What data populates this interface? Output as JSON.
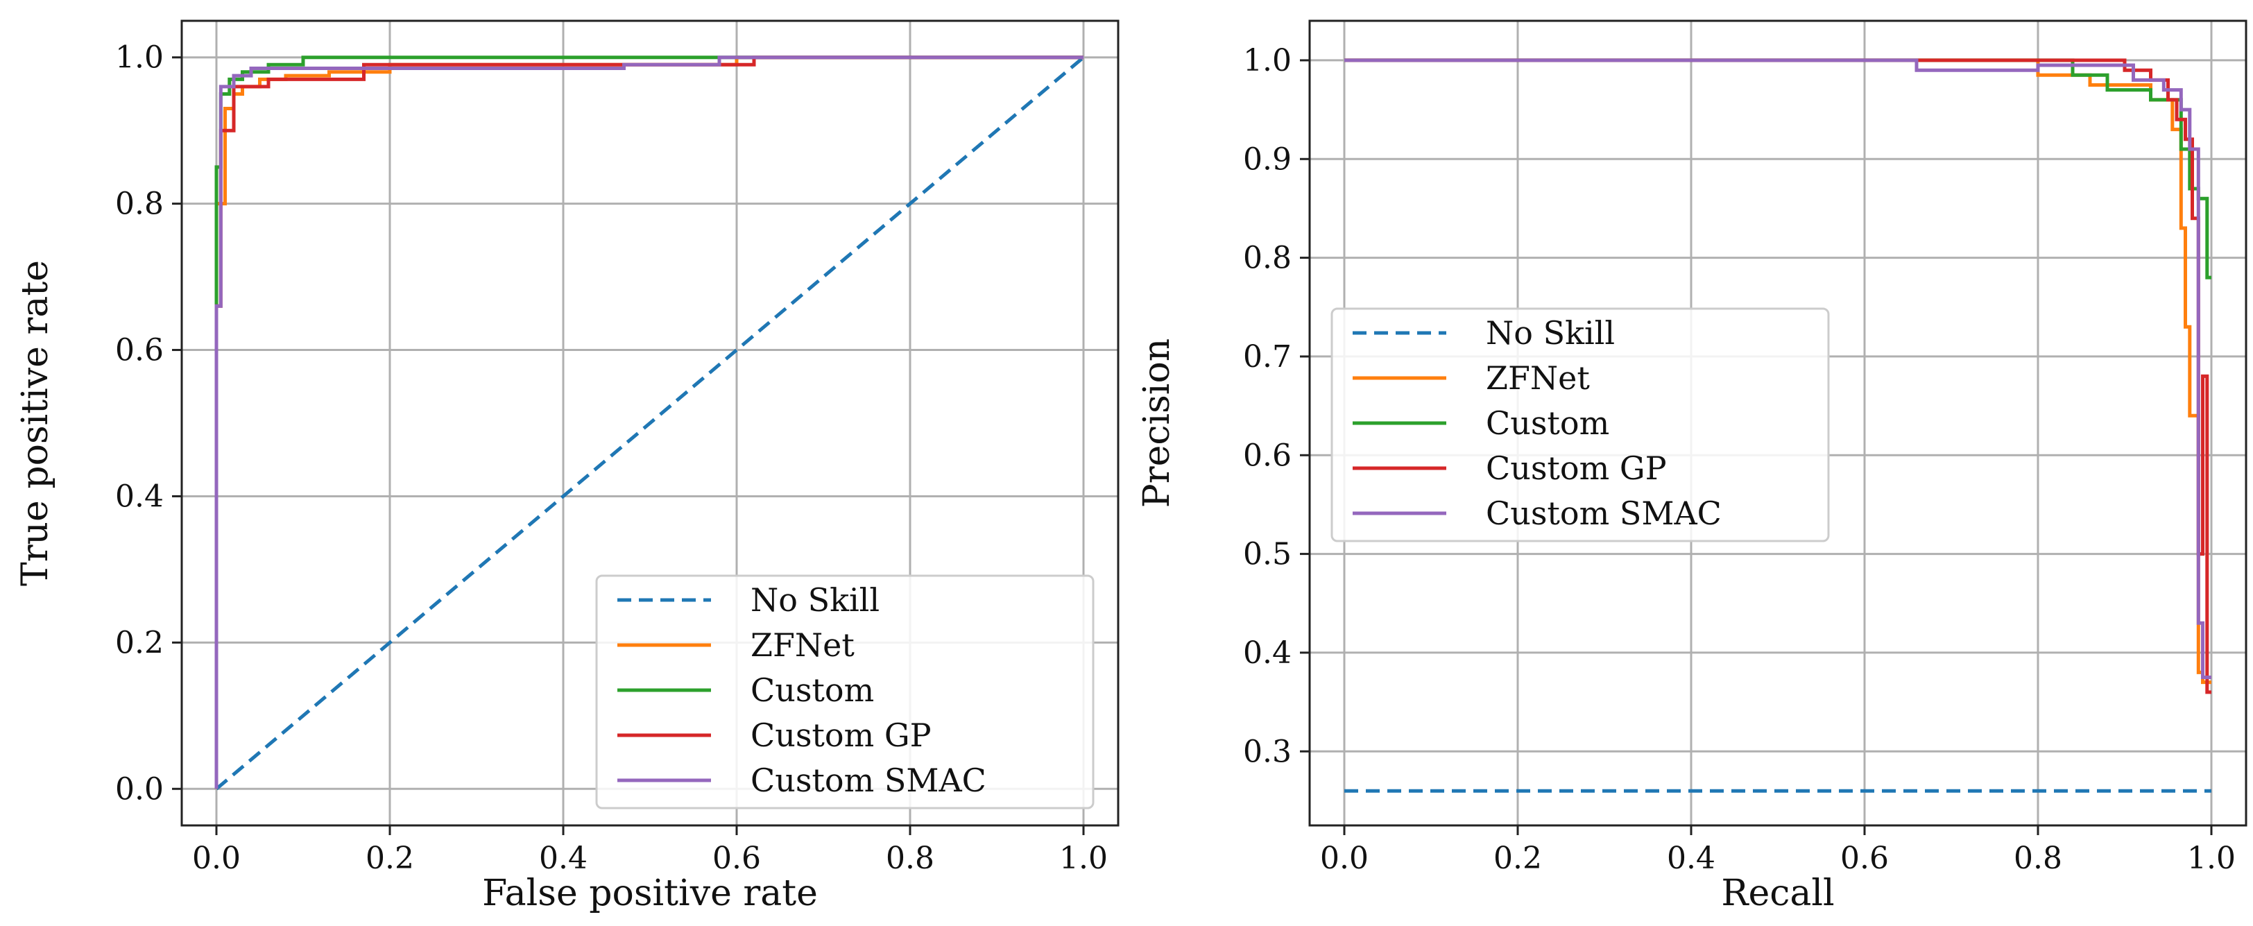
{
  "series_colors": {
    "No Skill": "#1f77b4",
    "ZFNet": "#ff7f0e",
    "Custom": "#2ca02c",
    "Custom GP": "#d62728",
    "Custom SMAC": "#9467bd"
  },
  "chart_data": [
    {
      "type": "line",
      "title": "",
      "xlabel": "False positive rate",
      "ylabel": "True positive rate",
      "xlim": [
        -0.04,
        1.04
      ],
      "ylim": [
        -0.05,
        1.05
      ],
      "xticks": [
        0.0,
        0.2,
        0.4,
        0.6,
        0.8,
        1.0
      ],
      "xtick_labels": [
        "0.0",
        "0.2",
        "0.4",
        "0.6",
        "0.8",
        "1.0"
      ],
      "yticks": [
        0.0,
        0.2,
        0.4,
        0.6,
        0.8,
        1.0
      ],
      "ytick_labels": [
        "0.0",
        "0.2",
        "0.4",
        "0.6",
        "0.8",
        "1.0"
      ],
      "grid": true,
      "legend_position": "lower-right",
      "series": [
        {
          "name": "No Skill",
          "dashed": true,
          "x": [
            0,
            1
          ],
          "y": [
            0,
            1
          ]
        },
        {
          "name": "ZFNet",
          "step": true,
          "x": [
            0,
            0,
            0.01,
            0.01,
            0.02,
            0.02,
            0.03,
            0.03,
            0.05,
            0.05,
            0.08,
            0.08,
            0.13,
            0.13,
            0.2,
            0.2,
            0.6,
            0.6,
            1.0
          ],
          "y": [
            0,
            0.8,
            0.8,
            0.93,
            0.93,
            0.95,
            0.95,
            0.96,
            0.96,
            0.97,
            0.97,
            0.975,
            0.975,
            0.98,
            0.98,
            0.99,
            0.99,
            1.0,
            1.0
          ]
        },
        {
          "name": "Custom",
          "step": true,
          "x": [
            0,
            0,
            0.005,
            0.005,
            0.015,
            0.015,
            0.03,
            0.03,
            0.06,
            0.06,
            0.1,
            0.1,
            1.0
          ],
          "y": [
            0,
            0.85,
            0.85,
            0.95,
            0.95,
            0.97,
            0.97,
            0.98,
            0.98,
            0.99,
            0.99,
            1.0,
            1.0
          ]
        },
        {
          "name": "Custom GP",
          "step": true,
          "x": [
            0,
            0,
            0.005,
            0.005,
            0.02,
            0.02,
            0.06,
            0.06,
            0.17,
            0.17,
            0.62,
            0.62,
            1.0
          ],
          "y": [
            0,
            0.66,
            0.66,
            0.9,
            0.9,
            0.96,
            0.96,
            0.97,
            0.97,
            0.99,
            0.99,
            1.0,
            1.0
          ]
        },
        {
          "name": "Custom SMAC",
          "step": true,
          "x": [
            0,
            0,
            0.005,
            0.005,
            0.02,
            0.02,
            0.04,
            0.04,
            0.47,
            0.47,
            0.58,
            0.58,
            1.0
          ],
          "y": [
            0,
            0.66,
            0.66,
            0.96,
            0.96,
            0.975,
            0.975,
            0.985,
            0.985,
            0.99,
            0.99,
            1.0,
            1.0
          ]
        }
      ]
    },
    {
      "type": "line",
      "title": "",
      "xlabel": "Recall",
      "ylabel": "Precision",
      "xlim": [
        -0.04,
        1.04
      ],
      "ylim": [
        0.225,
        1.04
      ],
      "xticks": [
        0.0,
        0.2,
        0.4,
        0.6,
        0.8,
        1.0
      ],
      "xtick_labels": [
        "0.0",
        "0.2",
        "0.4",
        "0.6",
        "0.8",
        "1.0"
      ],
      "yticks": [
        0.3,
        0.4,
        0.5,
        0.6,
        0.7,
        0.8,
        0.9,
        1.0
      ],
      "ytick_labels": [
        "0.3",
        "0.4",
        "0.5",
        "0.6",
        "0.7",
        "0.8",
        "0.9",
        "1.0"
      ],
      "grid": true,
      "legend_position": "center-left",
      "series": [
        {
          "name": "No Skill",
          "dashed": true,
          "x": [
            0,
            1
          ],
          "y": [
            0.26,
            0.26
          ]
        },
        {
          "name": "ZFNet",
          "step": true,
          "x": [
            0,
            0.8,
            0.8,
            0.86,
            0.86,
            0.93,
            0.93,
            0.955,
            0.955,
            0.965,
            0.965,
            0.97,
            0.97,
            0.975,
            0.975,
            0.985,
            0.985,
            0.99,
            0.99,
            1.0
          ],
          "y": [
            1.0,
            1.0,
            0.985,
            0.985,
            0.975,
            0.975,
            0.96,
            0.96,
            0.93,
            0.93,
            0.83,
            0.83,
            0.73,
            0.73,
            0.64,
            0.64,
            0.38,
            0.38,
            0.37,
            0.37
          ]
        },
        {
          "name": "Custom",
          "step": true,
          "x": [
            0,
            0.84,
            0.84,
            0.88,
            0.88,
            0.93,
            0.93,
            0.965,
            0.965,
            0.975,
            0.975,
            0.985,
            0.985,
            0.995,
            0.995,
            1.0
          ],
          "y": [
            1.0,
            1.0,
            0.985,
            0.985,
            0.97,
            0.97,
            0.96,
            0.96,
            0.91,
            0.91,
            0.87,
            0.87,
            0.86,
            0.86,
            0.78,
            0.78
          ]
        },
        {
          "name": "Custom GP",
          "step": true,
          "x": [
            0,
            0.9,
            0.9,
            0.93,
            0.93,
            0.95,
            0.95,
            0.96,
            0.96,
            0.97,
            0.97,
            0.978,
            0.978,
            0.985,
            0.985,
            0.99,
            0.99,
            0.995,
            0.995,
            1.0
          ],
          "y": [
            1.0,
            1.0,
            0.99,
            0.99,
            0.98,
            0.98,
            0.96,
            0.96,
            0.94,
            0.94,
            0.92,
            0.92,
            0.84,
            0.84,
            0.5,
            0.5,
            0.68,
            0.68,
            0.36,
            0.36
          ]
        },
        {
          "name": "Custom SMAC",
          "step": true,
          "x": [
            0,
            0.66,
            0.66,
            0.8,
            0.8,
            0.91,
            0.91,
            0.945,
            0.945,
            0.965,
            0.965,
            0.975,
            0.975,
            0.985,
            0.985,
            0.99,
            0.99,
            1.0
          ],
          "y": [
            1.0,
            1.0,
            0.99,
            0.99,
            0.995,
            0.995,
            0.98,
            0.98,
            0.97,
            0.97,
            0.95,
            0.95,
            0.91,
            0.91,
            0.43,
            0.43,
            0.375,
            0.375
          ]
        }
      ]
    }
  ]
}
